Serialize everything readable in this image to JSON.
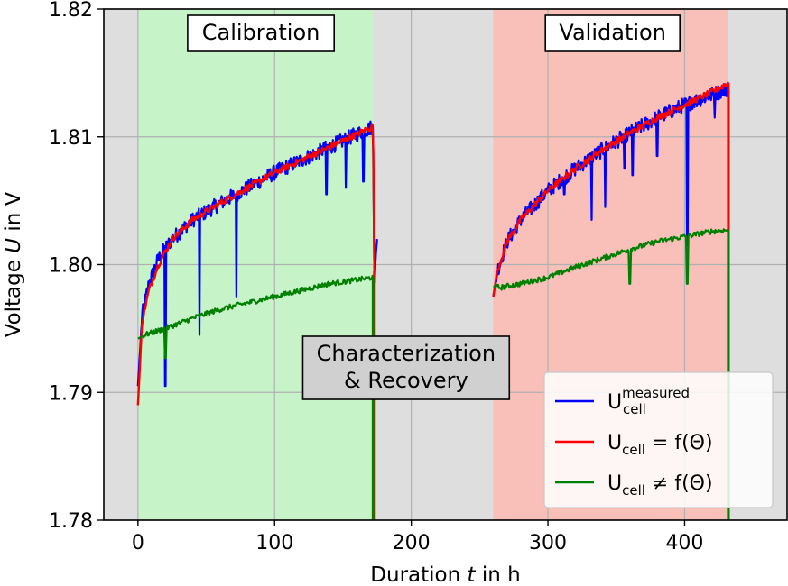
{
  "chart_data": {
    "type": "line",
    "xlabel": "Duration t in h",
    "xlabel_parts": [
      "Duration ",
      "t",
      " in h"
    ],
    "ylabel": "Voltage U in V",
    "ylabel_parts": [
      "Voltage ",
      "U",
      " in V"
    ],
    "xlim": [
      -25,
      475
    ],
    "ylim": [
      1.78,
      1.82
    ],
    "grid": true,
    "x_ticks": [
      0,
      100,
      200,
      300,
      400
    ],
    "y_ticks": [
      1.78,
      1.79,
      1.8,
      1.81,
      1.82
    ],
    "x_tick_labels": [
      "0",
      "100",
      "200",
      "300",
      "400"
    ],
    "y_tick_labels": [
      "1.78",
      "1.79",
      "1.80",
      "1.81",
      "1.82"
    ],
    "regions": [
      {
        "label": "Calibration",
        "start": 0,
        "end": 172,
        "color": "#c7f3c9"
      },
      {
        "label": "Characterization\n& Recovery",
        "label_lines": [
          "Characterization",
          "& Recovery"
        ],
        "start": 172,
        "end": 260,
        "color": "#dedede"
      },
      {
        "label": "Validation",
        "start": 260,
        "end": 432,
        "color": "#f8c0b8"
      }
    ],
    "background_color": "#dedede",
    "legend": {
      "placement": "lower-right",
      "entries": [
        {
          "base": "U",
          "sub": "cell",
          "sup": "measured",
          "rel": "",
          "rhs": "",
          "color": "#0000ff"
        },
        {
          "base": "U",
          "sub": "cell",
          "sup": "",
          "rel": "=",
          "rhs": "f(Θ)",
          "color": "#ff0000"
        },
        {
          "base": "U",
          "sub": "cell",
          "sup": "",
          "rel": "≠",
          "rhs": "f(Θ)",
          "color": "#008000"
        }
      ]
    },
    "series": [
      {
        "name": "U_cell^measured",
        "color": "#0000ff",
        "x": [
          0,
          3,
          8,
          15,
          25,
          40,
          60,
          80,
          100,
          120,
          140,
          160,
          172,
          173,
          175,
          260,
          263,
          270,
          280,
          300,
          320,
          340,
          360,
          380,
          400,
          420,
          432
        ],
        "y": [
          1.7905,
          1.796,
          1.7985,
          1.8005,
          1.802,
          1.8035,
          1.8048,
          1.806,
          1.8072,
          1.8082,
          1.8092,
          1.8102,
          1.8108,
          1.7985,
          1.802,
          1.7975,
          1.7995,
          1.8018,
          1.8035,
          1.8058,
          1.8075,
          1.809,
          1.8103,
          1.8115,
          1.8125,
          1.8133,
          1.8138
        ],
        "dips": [
          [
            20,
            1.7905
          ],
          [
            45,
            1.7945
          ],
          [
            72,
            1.7975
          ],
          [
            138,
            1.8055
          ],
          [
            152,
            1.806
          ],
          [
            165,
            1.8065
          ],
          [
            312,
            1.8055
          ],
          [
            332,
            1.8035
          ],
          [
            342,
            1.8045
          ],
          [
            356,
            1.8075
          ],
          [
            362,
            1.807
          ],
          [
            380,
            1.8085
          ],
          [
            402,
            1.8015
          ],
          [
            422,
            1.8115
          ]
        ]
      },
      {
        "name": "U_cell = f(Θ)",
        "color": "#ff0000",
        "x": [
          0,
          3,
          8,
          15,
          25,
          40,
          60,
          80,
          100,
          120,
          140,
          160,
          172,
          173,
          260,
          263,
          270,
          280,
          300,
          320,
          340,
          360,
          380,
          400,
          420,
          432
        ],
        "y": [
          1.789,
          1.7955,
          1.798,
          1.8,
          1.802,
          1.8035,
          1.8048,
          1.806,
          1.8072,
          1.8082,
          1.8092,
          1.8102,
          1.8108,
          1.7995,
          1.7975,
          1.7995,
          1.8018,
          1.8035,
          1.8058,
          1.8075,
          1.809,
          1.8103,
          1.8115,
          1.8125,
          1.8135,
          1.8142
        ]
      },
      {
        "name": "U_cell ≠ f(Θ)",
        "color": "#008000",
        "x": [
          0,
          5,
          20,
          40,
          60,
          80,
          100,
          120,
          140,
          160,
          172,
          260,
          265,
          280,
          300,
          320,
          340,
          360,
          380,
          400,
          420,
          432
        ],
        "y": [
          1.7942,
          1.7945,
          1.795,
          1.7958,
          1.7965,
          1.797,
          1.7975,
          1.798,
          1.7985,
          1.7988,
          1.799,
          1.7983,
          1.7982,
          1.7985,
          1.799,
          1.7998,
          1.8005,
          1.8012,
          1.8018,
          1.8022,
          1.8026,
          1.8027
        ],
        "dips": [
          [
            20,
            1.7927
          ],
          [
            360,
            1.7985
          ],
          [
            402,
            1.7985
          ]
        ]
      }
    ]
  }
}
